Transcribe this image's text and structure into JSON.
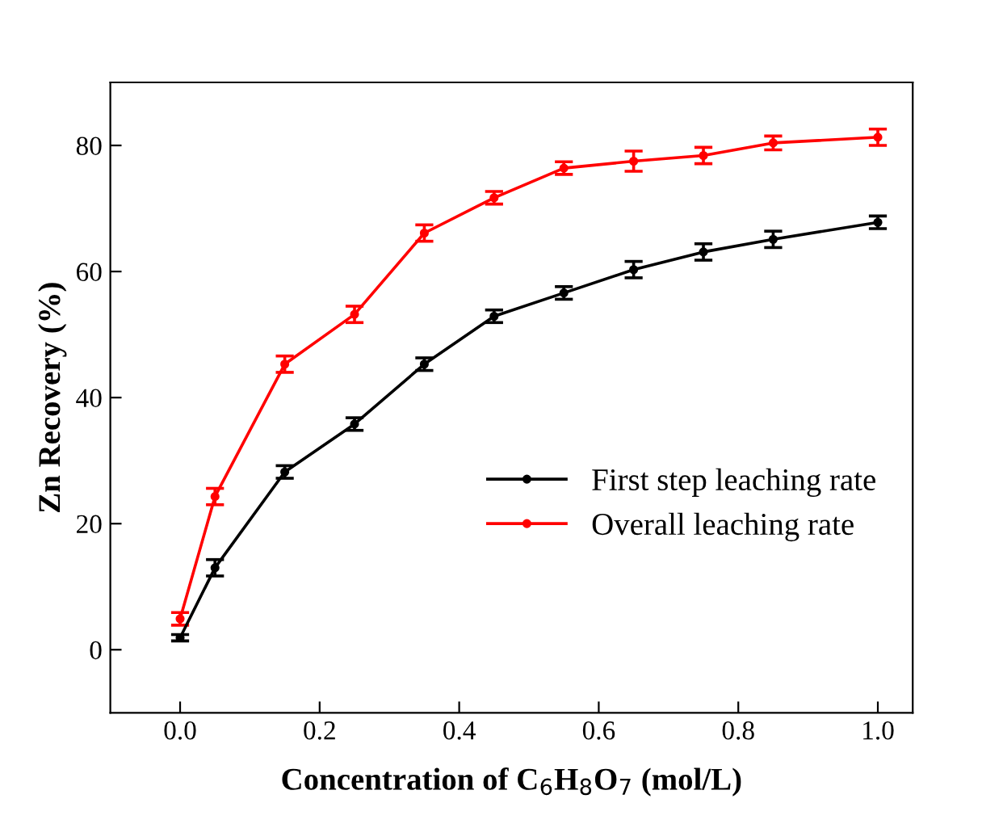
{
  "chart_data": {
    "type": "line",
    "xlabel": "Concentration of C$_{6}$H$_{8}$O$_{7}$ (mol/L)",
    "ylabel": "Zn Recovery (%)",
    "x": [
      0.0,
      0.05,
      0.15,
      0.25,
      0.35,
      0.45,
      0.55,
      0.65,
      0.75,
      0.85,
      1.0
    ],
    "series": [
      {
        "name": "First step leaching rate",
        "color": "#000000",
        "values": [
          1.9,
          13.0,
          28.2,
          35.8,
          45.3,
          52.9,
          56.6,
          60.3,
          63.1,
          65.1,
          67.8
        ],
        "errors": [
          0.5,
          1.3,
          1.0,
          1.0,
          1.0,
          1.0,
          1.0,
          1.3,
          1.3,
          1.3,
          1.0
        ]
      },
      {
        "name": "Overall leaching rate",
        "color": "#ff0000",
        "values": [
          4.9,
          24.3,
          45.3,
          53.2,
          66.1,
          71.7,
          76.4,
          77.5,
          78.4,
          80.4,
          81.3
        ],
        "errors": [
          1.0,
          1.3,
          1.3,
          1.3,
          1.3,
          1.0,
          1.0,
          1.6,
          1.3,
          1.1,
          1.3
        ]
      }
    ],
    "xlim": [
      -0.1,
      1.05
    ],
    "xticks": [
      {
        "value": 0,
        "label": "0.0"
      },
      0.2,
      0.4,
      0.6,
      0.8,
      {
        "value": 1,
        "label": "1.0"
      }
    ],
    "ylim": [
      -10,
      90
    ],
    "yticks": [
      0,
      20,
      40,
      60,
      80
    ],
    "grid": false,
    "legend": "right",
    "marker": "circle",
    "line_style": "solid"
  }
}
